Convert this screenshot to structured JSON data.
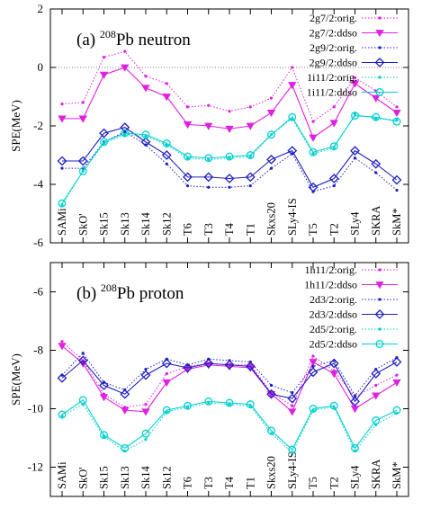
{
  "chart_data": [
    {
      "type": "line",
      "title": "(a) 208Pb neutron",
      "title_prefix": "(a) ",
      "title_sup": "208",
      "title_suffix": "Pb neutron",
      "ylabel": "SPE(MeV)",
      "ylim": [
        -6,
        2
      ],
      "yticks": [
        "-6",
        "-4",
        "-2",
        "0",
        "2"
      ],
      "zero_line": true,
      "legend_position": "top-right",
      "categories": [
        "SAMi",
        "SkO'",
        "Sk15",
        "Sk13",
        "Sk14",
        "Sk12",
        "T6",
        "T3",
        "T4",
        "T1",
        "Skxs20",
        "SLy4-IS",
        "T5",
        "T2",
        "SLy4",
        "SKRA",
        "SkM*"
      ],
      "series": [
        {
          "name": "2g7/2:orig.",
          "color": "#e020e0",
          "style": "dotted",
          "marker": "dot",
          "values": [
            -1.25,
            -1.2,
            0.35,
            0.55,
            -0.3,
            -0.55,
            -1.35,
            -1.3,
            -1.5,
            -1.35,
            -1.05,
            0.0,
            -1.85,
            -1.35,
            -0.35,
            -0.8,
            -1.35
          ]
        },
        {
          "name": "2g7/2:ddso",
          "color": "#e020e0",
          "style": "solid",
          "marker": "triangle-down",
          "values": [
            -1.75,
            -1.75,
            -0.25,
            0.0,
            -0.7,
            -1.0,
            -1.95,
            -2.0,
            -2.1,
            -2.0,
            -1.55,
            -0.6,
            -2.4,
            -1.9,
            -0.55,
            -1.05,
            -1.55
          ]
        },
        {
          "name": "2g9/2:orig.",
          "color": "#2020c0",
          "style": "dotted",
          "marker": "dot",
          "values": [
            -3.45,
            -3.45,
            -2.55,
            -2.2,
            -2.65,
            -3.3,
            -4.05,
            -4.1,
            -4.1,
            -4.05,
            -3.45,
            -2.95,
            -4.25,
            -4.05,
            -3.1,
            -3.6,
            -4.2
          ]
        },
        {
          "name": "2g9/2:ddso",
          "color": "#2020c0",
          "style": "solid",
          "marker": "diamond",
          "values": [
            -3.2,
            -3.2,
            -2.25,
            -2.05,
            -2.55,
            -3.0,
            -3.75,
            -3.75,
            -3.8,
            -3.75,
            -3.15,
            -2.85,
            -4.1,
            -3.8,
            -2.85,
            -3.3,
            -3.85
          ]
        },
        {
          "name": "1i11/2:orig.",
          "color": "#00d0d0",
          "style": "dotted",
          "marker": "dot",
          "values": [
            -4.7,
            -3.55,
            -2.6,
            -2.3,
            -2.35,
            -2.65,
            -3.1,
            -3.15,
            -3.1,
            -3.05,
            -2.3,
            -1.75,
            -2.95,
            -2.75,
            -1.6,
            -1.75,
            -1.8
          ]
        },
        {
          "name": "1i11/2:ddso",
          "color": "#00d0d0",
          "style": "solid",
          "marker": "circle",
          "values": [
            -4.65,
            -3.55,
            -2.55,
            -2.25,
            -2.3,
            -2.6,
            -3.05,
            -3.1,
            -3.05,
            -3.0,
            -2.3,
            -1.7,
            -2.9,
            -2.7,
            -1.65,
            -1.7,
            -1.85
          ]
        }
      ]
    },
    {
      "type": "line",
      "title": "(b) 208Pb proton",
      "title_prefix": "(b) ",
      "title_sup": "208",
      "title_suffix": "Pb proton",
      "ylabel": "SPE(MeV)",
      "ylim": [
        -13,
        -5
      ],
      "yticks": [
        "-12",
        "-10",
        "-8",
        "-6"
      ],
      "zero_line": false,
      "legend_position": "top-right",
      "categories": [
        "SAMi",
        "SkO'",
        "Sk15",
        "Sk13",
        "Sk14",
        "Sk12",
        "T6",
        "T3",
        "T4",
        "T1",
        "Skxs20",
        "SLy4-IS",
        "T5",
        "T2",
        "SLy4",
        "SKRA",
        "SkM*"
      ],
      "series": [
        {
          "name": "1h11/2:orig.",
          "color": "#e020e0",
          "style": "dotted",
          "marker": "dot",
          "values": [
            -7.7,
            -8.35,
            -9.5,
            -9.95,
            -9.85,
            -8.8,
            -8.55,
            -8.45,
            -8.5,
            -8.5,
            -9.45,
            -9.9,
            -8.2,
            -8.7,
            -9.6,
            -9.2,
            -8.85
          ]
        },
        {
          "name": "1h11/2:ddso",
          "color": "#e020e0",
          "style": "solid",
          "marker": "triangle-down",
          "values": [
            -7.85,
            -8.45,
            -9.6,
            -10.05,
            -10.1,
            -9.1,
            -8.65,
            -8.5,
            -8.55,
            -8.6,
            -9.5,
            -10.1,
            -8.4,
            -8.8,
            -10.0,
            -9.55,
            -9.1
          ]
        },
        {
          "name": "2d3/2:orig.",
          "color": "#2020c0",
          "style": "dotted",
          "marker": "dot",
          "values": [
            -8.85,
            -8.1,
            -9.1,
            -9.35,
            -8.65,
            -8.3,
            -8.5,
            -8.3,
            -8.35,
            -8.4,
            -9.2,
            -9.45,
            -8.55,
            -8.35,
            -9.55,
            -8.65,
            -8.25
          ]
        },
        {
          "name": "2d3/2:ddso",
          "color": "#2020c0",
          "style": "solid",
          "marker": "diamond",
          "values": [
            -8.95,
            -8.35,
            -9.2,
            -9.5,
            -8.85,
            -8.45,
            -8.6,
            -8.45,
            -8.5,
            -8.55,
            -9.5,
            -9.65,
            -8.75,
            -8.45,
            -9.75,
            -8.8,
            -8.4
          ]
        },
        {
          "name": "2d5/2:orig.",
          "color": "#00d0d0",
          "style": "dotted",
          "marker": "dot",
          "values": [
            -10.25,
            -9.85,
            -10.95,
            -11.45,
            -11.05,
            -10.1,
            -9.95,
            -9.8,
            -9.85,
            -9.9,
            -10.85,
            -11.5,
            -10.05,
            -9.95,
            -11.45,
            -10.55,
            -10.15
          ]
        },
        {
          "name": "2d5/2:ddso",
          "color": "#00d0d0",
          "style": "solid",
          "marker": "circle",
          "values": [
            -10.2,
            -9.7,
            -10.9,
            -11.35,
            -10.85,
            -10.05,
            -9.9,
            -9.75,
            -9.8,
            -9.85,
            -10.75,
            -11.4,
            -10.0,
            -9.9,
            -11.35,
            -10.4,
            -10.05
          ]
        }
      ]
    }
  ]
}
